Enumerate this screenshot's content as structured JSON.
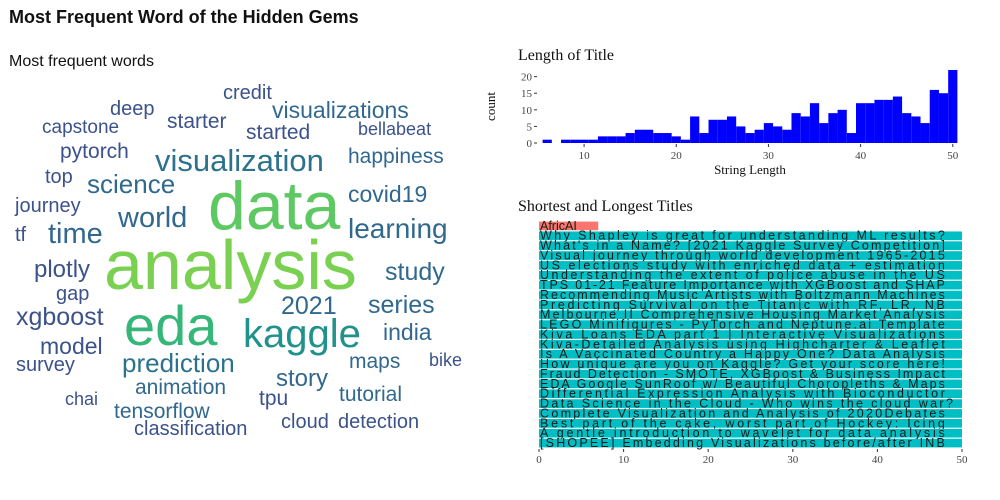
{
  "page": {
    "title": "Most Frequent Word of the Hidden Gems"
  },
  "wordcloud": {
    "subtitle": "Most frequent words",
    "words": [
      {
        "text": "analysis",
        "color": "#7ad151"
      },
      {
        "text": "data",
        "color": "#5ec962"
      },
      {
        "text": "eda",
        "color": "#35b779"
      },
      {
        "text": "kaggle",
        "color": "#21918c"
      },
      {
        "text": "visualization",
        "color": "#2c728e"
      },
      {
        "text": "prediction",
        "color": "#2c728e"
      },
      {
        "text": "world",
        "color": "#31688e"
      },
      {
        "text": "science",
        "color": "#31688e"
      },
      {
        "text": "learning",
        "color": "#31688e"
      },
      {
        "text": "time",
        "color": "#31688e"
      },
      {
        "text": "plotly",
        "color": "#3b528b"
      },
      {
        "text": "series",
        "color": "#31688e"
      },
      {
        "text": "study",
        "color": "#31688e"
      },
      {
        "text": "xgboost",
        "color": "#3b528b"
      },
      {
        "text": "2021",
        "color": "#31688e"
      },
      {
        "text": "model",
        "color": "#3b528b"
      },
      {
        "text": "story",
        "color": "#31688e"
      },
      {
        "text": "india",
        "color": "#31688e"
      },
      {
        "text": "covid19",
        "color": "#31688e"
      },
      {
        "text": "happiness",
        "color": "#31688e"
      },
      {
        "text": "visualizations",
        "color": "#31688e"
      },
      {
        "text": "animation",
        "color": "#31688e"
      },
      {
        "text": "tensorflow",
        "color": "#31688e"
      },
      {
        "text": "maps",
        "color": "#31688e"
      },
      {
        "text": "tutorial",
        "color": "#31688e"
      },
      {
        "text": "pytorch",
        "color": "#3b528b"
      },
      {
        "text": "starter",
        "color": "#3b528b"
      },
      {
        "text": "started",
        "color": "#3b528b"
      },
      {
        "text": "capstone",
        "color": "#3b528b"
      },
      {
        "text": "journey",
        "color": "#3b528b"
      },
      {
        "text": "classification",
        "color": "#3b528b"
      },
      {
        "text": "cloud",
        "color": "#3b528b"
      },
      {
        "text": "detection",
        "color": "#3b528b"
      },
      {
        "text": "survey",
        "color": "#3b528b"
      },
      {
        "text": "tpu",
        "color": "#3b528b"
      },
      {
        "text": "deep",
        "color": "#3b528b"
      },
      {
        "text": "credit",
        "color": "#3b528b"
      },
      {
        "text": "bellabeat",
        "color": "#3b528b"
      },
      {
        "text": "top",
        "color": "#3b528b"
      },
      {
        "text": "gap",
        "color": "#3b528b"
      },
      {
        "text": "tf",
        "color": "#3b528b"
      },
      {
        "text": "chai",
        "color": "#3b528b"
      },
      {
        "text": "bike",
        "color": "#3b528b"
      }
    ]
  },
  "chart_data": [
    {
      "type": "bar",
      "title": "Length of Title",
      "xlabel": "String Length",
      "ylabel": "count",
      "xlim": [
        5,
        51
      ],
      "ylim": [
        0,
        22
      ],
      "x_ticks": [
        10,
        20,
        30,
        40,
        50
      ],
      "y_ticks": [
        0,
        5,
        10,
        15,
        20
      ],
      "bar_color": "#0000ff",
      "x": [
        6,
        7,
        8,
        9,
        10,
        11,
        12,
        13,
        14,
        15,
        16,
        17,
        18,
        19,
        20,
        21,
        22,
        23,
        24,
        25,
        26,
        27,
        28,
        29,
        30,
        31,
        32,
        33,
        34,
        35,
        36,
        37,
        38,
        39,
        40,
        41,
        42,
        43,
        44,
        45,
        46,
        47,
        48,
        49,
        50
      ],
      "values": [
        1,
        0,
        1,
        1,
        1,
        1,
        2,
        2,
        2,
        3,
        4,
        4,
        3,
        3,
        2,
        1,
        8,
        3,
        7,
        7,
        8,
        5,
        3,
        4,
        6,
        5,
        4,
        9,
        8,
        12,
        6,
        9,
        10,
        3,
        12,
        12,
        13,
        13,
        14,
        9,
        8,
        6,
        16,
        15,
        22
      ],
      "grid": false
    },
    {
      "type": "bar",
      "orientation": "horizontal",
      "title": "Shortest and Longest Titles",
      "xlim": [
        0,
        50
      ],
      "x_ticks": [
        0,
        10,
        20,
        30,
        40,
        50
      ],
      "categories": [
        "AfricAI",
        "Why Shapley is great for understanding ML results?",
        "What's in a Name? [2021 Kaggle Survey Competition]",
        "Visual journey through world development 1965-2015",
        "US elections study with enriched data + estimation",
        "Understanding the extent of police abuse in the US",
        "TPS 01-21 Feature Importance with XGBoost and SHAP",
        "Recommending Music Artists with Boltzmann Machines",
        "Predicting Survival on the Titanic with RF, LR, NB",
        "Melbourne II Comprehensive Housing Market Analysis",
        "LEGO Minifigures - PyTorch and Neptune.ai Template",
        "Kiva Loans EDA part 1 | Interactive Visualizations",
        "Kiva-Detailed Analysis using Highcharter & Leaflet",
        "Is A Vaccinated Country a Happy One? Data Analysis",
        "How unique are you on Kaggle? Get your score here!",
        "Fraud Detection - SMOTE, XGBoost & Business Impact",
        "EDA Google SunRoof w/ Beautiful Choropleths & Maps",
        "Differential Expression Analysis with Bioconductor",
        "Data Science in the Cloud - Who wins the cloud war?",
        "Complete Visualization and Analysis of 2020Debates",
        "Best part of the cake, worst part of Hockey: Icing",
        "A gentle introduction to wavelet for data analysis",
        "[SHOPEE] Embedding Visualizations before/after INB"
      ],
      "values": [
        7,
        50,
        50,
        50,
        50,
        50,
        50,
        50,
        50,
        50,
        50,
        50,
        50,
        50,
        50,
        50,
        50,
        50,
        50,
        50,
        50,
        50,
        50
      ],
      "colors": {
        "shortest": "#f8766d",
        "longest": "#00bfc4"
      }
    }
  ]
}
